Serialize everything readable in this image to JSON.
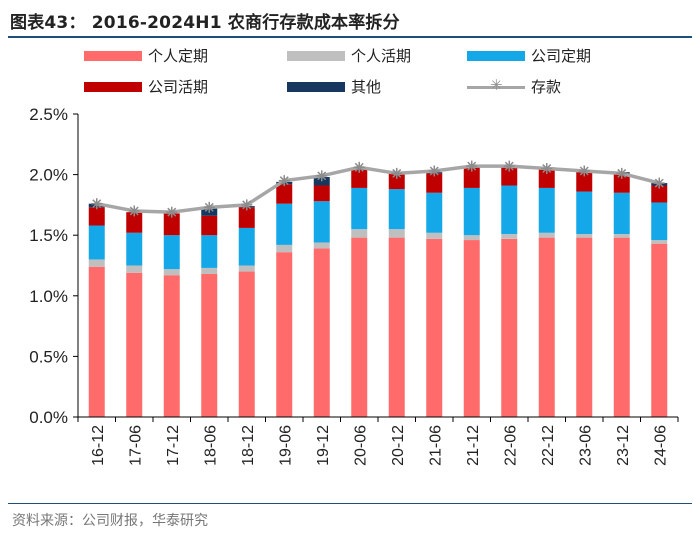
{
  "title": "图表43： 2016-2024H1 农商行存款成本率拆分",
  "source": "资料来源：公司财报，华泰研究",
  "legend": [
    {
      "label": "个人定期",
      "color": "#ff6b6b",
      "kind": "box"
    },
    {
      "label": "个人活期",
      "color": "#bfbfbf",
      "kind": "box"
    },
    {
      "label": "公司定期",
      "color": "#14a8e8",
      "kind": "box"
    },
    {
      "label": "公司活期",
      "color": "#c00000",
      "kind": "box"
    },
    {
      "label": "其他",
      "color": "#17375e",
      "kind": "box"
    },
    {
      "label": "存款",
      "color": "#a6a6a6",
      "kind": "line"
    }
  ],
  "chart_data": {
    "type": "bar",
    "stacked": true,
    "categories": [
      "16-12",
      "17-06",
      "17-12",
      "18-06",
      "18-12",
      "19-06",
      "19-12",
      "20-06",
      "20-12",
      "21-06",
      "21-12",
      "22-06",
      "22-12",
      "23-06",
      "23-12",
      "24-06"
    ],
    "series": [
      {
        "name": "个人定期",
        "color": "#ff6b6b",
        "values": [
          1.24,
          1.19,
          1.17,
          1.18,
          1.2,
          1.36,
          1.39,
          1.48,
          1.48,
          1.47,
          1.46,
          1.47,
          1.48,
          1.48,
          1.48,
          1.43
        ]
      },
      {
        "name": "个人活期",
        "color": "#bfbfbf",
        "values": [
          0.06,
          0.06,
          0.05,
          0.05,
          0.05,
          0.06,
          0.05,
          0.07,
          0.07,
          0.05,
          0.04,
          0.04,
          0.04,
          0.03,
          0.03,
          0.03
        ]
      },
      {
        "name": "公司定期",
        "color": "#14a8e8",
        "values": [
          0.28,
          0.27,
          0.28,
          0.27,
          0.31,
          0.34,
          0.34,
          0.34,
          0.33,
          0.33,
          0.39,
          0.4,
          0.37,
          0.35,
          0.34,
          0.31
        ]
      },
      {
        "name": "公司活期",
        "color": "#c00000",
        "values": [
          0.15,
          0.17,
          0.18,
          0.16,
          0.17,
          0.16,
          0.13,
          0.15,
          0.14,
          0.16,
          0.17,
          0.17,
          0.17,
          0.16,
          0.16,
          0.14
        ]
      },
      {
        "name": "其他",
        "color": "#17375e",
        "values": [
          0.03,
          0.0,
          0.0,
          0.06,
          0.01,
          0.02,
          0.07,
          0.01,
          0.0,
          0.01,
          0.0,
          0.0,
          0.0,
          0.01,
          0.01,
          0.02
        ]
      }
    ],
    "line": {
      "name": "存款",
      "color": "#a6a6a6",
      "values": [
        1.76,
        1.7,
        1.69,
        1.73,
        1.75,
        1.95,
        1.99,
        2.06,
        2.01,
        2.03,
        2.07,
        2.07,
        2.05,
        2.03,
        2.01,
        1.93
      ]
    },
    "ylim": [
      0,
      2.5
    ],
    "yticks": [
      "0.0%",
      "0.5%",
      "1.0%",
      "1.5%",
      "2.0%",
      "2.5%"
    ],
    "ytick_values": [
      0,
      0.5,
      1.0,
      1.5,
      2.0,
      2.5
    ],
    "xlabel": "",
    "ylabel": "",
    "grid": false
  }
}
